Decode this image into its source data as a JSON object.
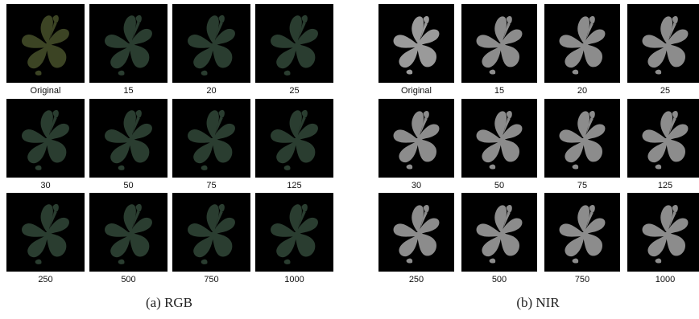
{
  "panels": [
    {
      "caption": "(a) RGB",
      "labels": [
        "Original",
        "15",
        "20",
        "25",
        "30",
        "50",
        "75",
        "125",
        "250",
        "500",
        "750",
        "1000"
      ]
    },
    {
      "caption": "(b) NIR",
      "labels": [
        "Original",
        "15",
        "20",
        "25",
        "30",
        "50",
        "75",
        "125",
        "250",
        "500",
        "750",
        "1000"
      ]
    }
  ]
}
